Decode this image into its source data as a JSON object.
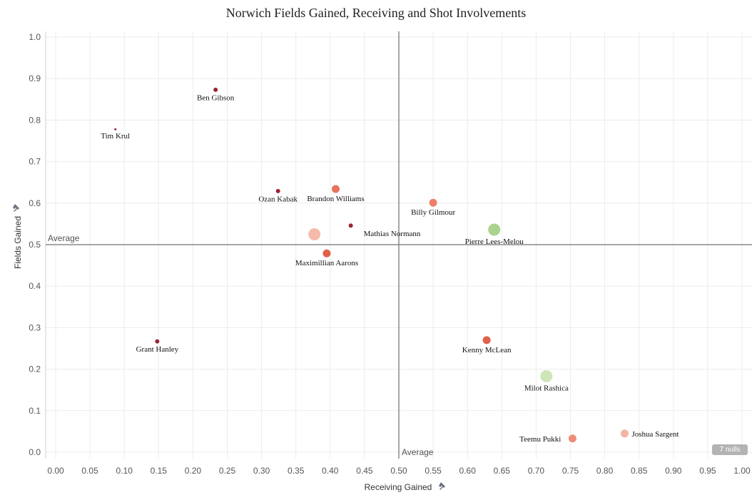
{
  "chart_data": {
    "type": "scatter",
    "title": "Norwich Fields Gained, Receiving and Shot Involvements",
    "xlabel": "Receiving Gained",
    "ylabel": "Fields Gained",
    "xlim": [
      0,
      1.0
    ],
    "ylim": [
      0,
      1.0
    ],
    "x_ticks": [
      "0.00",
      "0.05",
      "0.10",
      "0.15",
      "0.20",
      "0.25",
      "0.30",
      "0.35",
      "0.40",
      "0.45",
      "0.50",
      "0.55",
      "0.60",
      "0.65",
      "0.70",
      "0.75",
      "0.80",
      "0.85",
      "0.90",
      "0.95",
      "1.00"
    ],
    "y_ticks": [
      "0.0",
      "0.1",
      "0.2",
      "0.3",
      "0.4",
      "0.5",
      "0.6",
      "0.7",
      "0.8",
      "0.9",
      "1.0"
    ],
    "grid": true,
    "reference_lines": [
      {
        "axis": "x",
        "value": 0.5,
        "label": "Average"
      },
      {
        "axis": "y",
        "value": 0.5,
        "label": "Average"
      }
    ],
    "points": [
      {
        "name": "Ben Gibson",
        "x": 0.233,
        "y": 0.873,
        "size": 1,
        "color": "#9b2335",
        "label_pos": "below"
      },
      {
        "name": "Tim Krul",
        "x": 0.087,
        "y": 0.778,
        "size": 0,
        "color": "#9b2335",
        "label_pos": "below"
      },
      {
        "name": "Ozan Kabak",
        "x": 0.324,
        "y": 0.629,
        "size": 1,
        "color": "#9b2335",
        "label_pos": "below"
      },
      {
        "name": "Brandon Williams",
        "x": 0.408,
        "y": 0.634,
        "size": 2,
        "color": "#e8735c",
        "label_pos": "below"
      },
      {
        "name": "Billy Gilmour",
        "x": 0.55,
        "y": 0.601,
        "size": 2,
        "color": "#ed7f6a",
        "label_pos": "below"
      },
      {
        "name": "Pierre Lees-Melou",
        "x": 0.639,
        "y": 0.536,
        "size": 3,
        "color": "#a9d38e",
        "label_pos": "below"
      },
      {
        "name": "Mathias Normann",
        "x": 0.43,
        "y": 0.546,
        "size": 1,
        "color": "#9b2335",
        "label_pos": "below"
      },
      {
        "name": "",
        "x": 0.377,
        "y": 0.525,
        "size": 3,
        "color": "#f5bbaa",
        "label_pos": "none"
      },
      {
        "name": "Maximillian Aarons",
        "x": 0.395,
        "y": 0.479,
        "size": 2,
        "color": "#e0614a",
        "label_pos": "below"
      },
      {
        "name": "Grant Hanley",
        "x": 0.148,
        "y": 0.267,
        "size": 1,
        "color": "#9b2335",
        "label_pos": "below"
      },
      {
        "name": "Kenny McLean",
        "x": 0.628,
        "y": 0.27,
        "size": 2,
        "color": "#e0614a",
        "label_pos": "below"
      },
      {
        "name": "Milot Rashica",
        "x": 0.715,
        "y": 0.183,
        "size": 3,
        "color": "#cfe5b8",
        "label_pos": "below"
      },
      {
        "name": "Teemu Pukki",
        "x": 0.753,
        "y": 0.033,
        "size": 2,
        "color": "#ed8d78",
        "label_pos": "left"
      },
      {
        "name": "Joshua Sargent",
        "x": 0.829,
        "y": 0.045,
        "size": 2,
        "color": "#f3b3a2",
        "label_pos": "right"
      }
    ]
  },
  "nulls_badge": "7 nulls"
}
